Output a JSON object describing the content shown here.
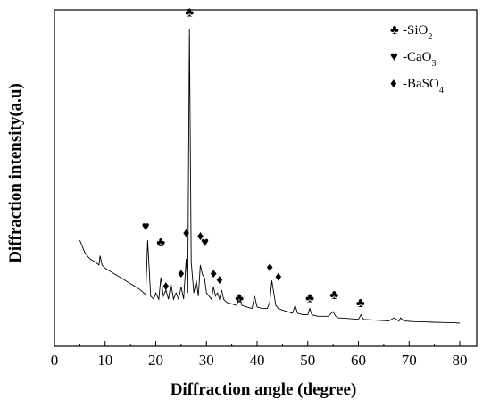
{
  "chart_data": {
    "type": "line",
    "xlabel": "Diffraction angle (degree)",
    "ylabel": "Diffraction intensity(a.u)",
    "xlim": [
      0,
      80
    ],
    "ylim": [
      0,
      100
    ],
    "xticks": [
      "0",
      "10",
      "20",
      "30",
      "40",
      "50",
      "60",
      "70",
      "80"
    ],
    "grid": false,
    "legend_position": "top-right",
    "legend": [
      {
        "symbol": "♣",
        "label": "-SiO",
        "sub": "2"
      },
      {
        "symbol": "♥",
        "label": "-CaO",
        "sub": "3"
      },
      {
        "symbol": "♦",
        "label": "-BaSO",
        "sub": "4"
      }
    ],
    "series": [
      {
        "x": [
          5,
          5.5,
          6,
          7,
          8,
          8.8,
          9,
          9.4,
          10,
          11,
          12,
          13,
          14,
          15,
          16,
          17,
          17.6,
          18,
          18.4,
          19,
          19.6,
          20,
          20.6,
          21,
          21.5,
          22,
          22.5,
          23,
          23.5,
          24,
          24.5,
          25,
          25.5,
          26,
          26.3,
          26.65,
          27,
          27.5,
          28,
          28.4,
          28.8,
          29.2,
          29.6,
          30,
          30.5,
          31,
          31.4,
          31.8,
          32.2,
          32.6,
          33,
          33.4,
          34,
          35,
          36,
          36.5,
          37,
          38,
          39,
          39.5,
          40,
          41,
          42,
          42.5,
          42.9,
          43.3,
          43.7,
          44.2,
          45,
          46,
          47,
          47.5,
          48,
          49,
          50,
          50.4,
          50.8,
          52,
          54,
          55,
          55.5,
          56,
          58,
          60,
          60.5,
          61,
          63,
          65,
          66,
          67,
          68,
          68.3,
          69,
          71,
          73,
          75,
          77,
          79,
          80
        ],
        "y": [
          29,
          27,
          25,
          23,
          22,
          21,
          24,
          21,
          20,
          19,
          18,
          17,
          16,
          15,
          14,
          13,
          12,
          11.5,
          29,
          11,
          10,
          12,
          10,
          17,
          11,
          13,
          10,
          15,
          10,
          12,
          10,
          14,
          10,
          23,
          12,
          97,
          22,
          12,
          16,
          11,
          21,
          18,
          17,
          12,
          11,
          10,
          14,
          11,
          12,
          10,
          13,
          10,
          9,
          8.5,
          8,
          11,
          8,
          7.5,
          7,
          11,
          7.5,
          7,
          7,
          9,
          16,
          12,
          8,
          7,
          6.5,
          6,
          5.5,
          8,
          5.5,
          5,
          5,
          7,
          5,
          4.5,
          4.5,
          6,
          4.5,
          4,
          3.8,
          3.5,
          5,
          3.5,
          3.3,
          3.1,
          3,
          4,
          3,
          4,
          3,
          2.8,
          2.7,
          2.6,
          2.5,
          2.4,
          2.3
        ]
      }
    ],
    "peak_markers": [
      {
        "x": 18.0,
        "y": 32,
        "symbol": "♥"
      },
      {
        "x": 21.0,
        "y": 27,
        "symbol": "♣"
      },
      {
        "x": 22.0,
        "y": 13,
        "symbol": "♦"
      },
      {
        "x": 25.0,
        "y": 17,
        "symbol": "♦"
      },
      {
        "x": 26.0,
        "y": 30,
        "symbol": "♦"
      },
      {
        "x": 26.65,
        "y": 101,
        "symbol": "♣"
      },
      {
        "x": 28.8,
        "y": 29,
        "symbol": "♦"
      },
      {
        "x": 29.7,
        "y": 27,
        "symbol": "♥"
      },
      {
        "x": 31.4,
        "y": 17,
        "symbol": "♦"
      },
      {
        "x": 32.6,
        "y": 15,
        "symbol": "♦"
      },
      {
        "x": 36.5,
        "y": 9,
        "symbol": "♣"
      },
      {
        "x": 42.5,
        "y": 19,
        "symbol": "♦"
      },
      {
        "x": 44.2,
        "y": 16,
        "symbol": "♦"
      },
      {
        "x": 50.4,
        "y": 9,
        "symbol": "♣"
      },
      {
        "x": 55.2,
        "y": 10,
        "symbol": "♣"
      },
      {
        "x": 60.4,
        "y": 7.5,
        "symbol": "♣"
      }
    ]
  }
}
